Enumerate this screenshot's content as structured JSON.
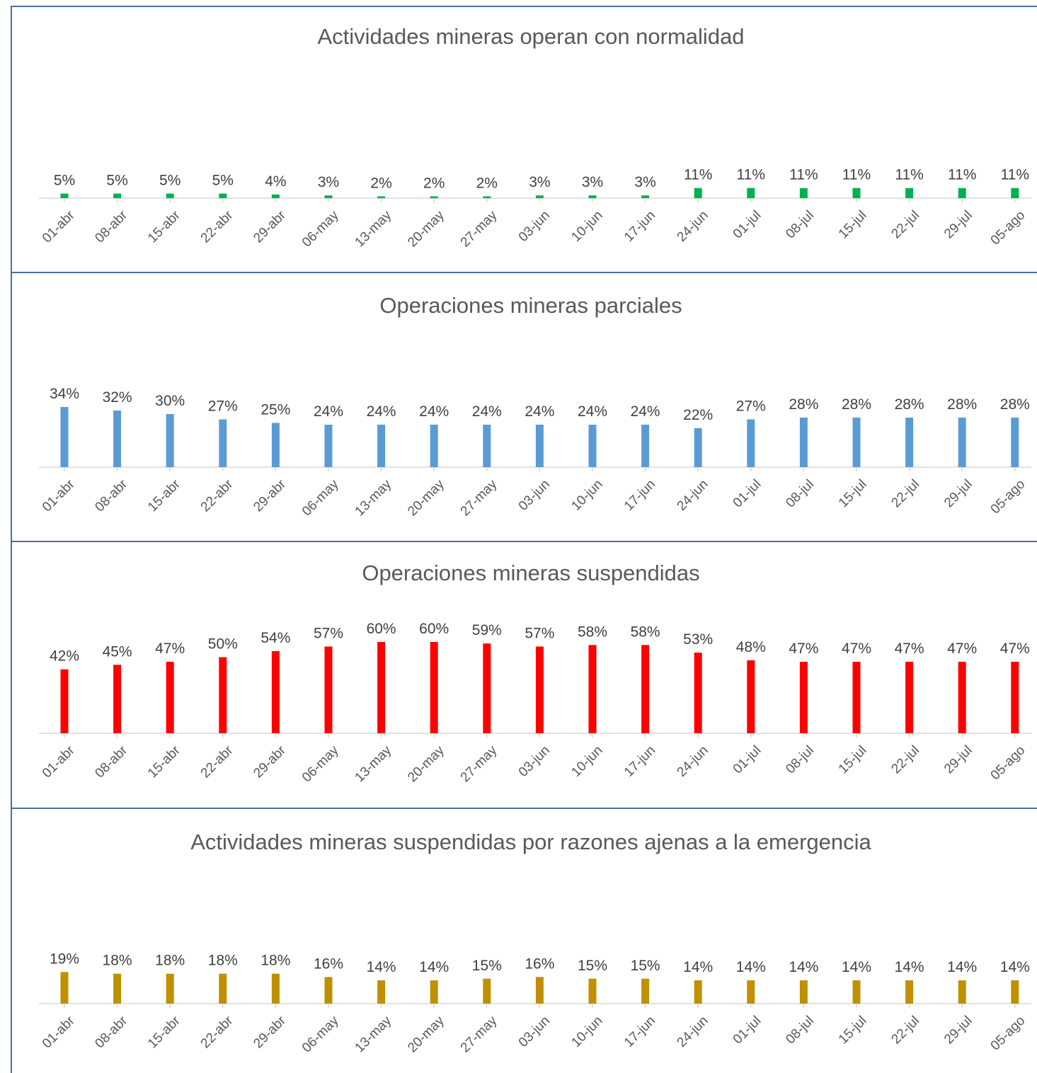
{
  "chart_data": [
    {
      "type": "bar",
      "title": "Actividades mineras operan con normalidad",
      "color": "#00b050",
      "categories": [
        "01-abr",
        "08-abr",
        "15-abr",
        "22-abr",
        "29-abr",
        "06-may",
        "13-may",
        "20-may",
        "27-may",
        "03-jun",
        "10-jun",
        "17-jun",
        "24-jun",
        "01-jul",
        "08-jul",
        "15-jul",
        "22-jul",
        "29-jul",
        "05-ago"
      ],
      "values": [
        5,
        5,
        5,
        5,
        4,
        3,
        2,
        2,
        2,
        3,
        3,
        3,
        11,
        11,
        11,
        11,
        11,
        11,
        11
      ],
      "value_labels": [
        "5%",
        "5%",
        "5%",
        "5%",
        "4%",
        "3%",
        "2%",
        "2%",
        "2%",
        "3%",
        "3%",
        "3%",
        "11%",
        "11%",
        "11%",
        "11%",
        "11%",
        "11%",
        "11%"
      ],
      "ylim": [
        0,
        100
      ],
      "grid": false
    },
    {
      "type": "bar",
      "title": "Operaciones mineras parciales",
      "color": "#5b9bd5",
      "categories": [
        "01-abr",
        "08-abr",
        "15-abr",
        "22-abr",
        "29-abr",
        "06-may",
        "13-may",
        "20-may",
        "27-may",
        "03-jun",
        "10-jun",
        "17-jun",
        "24-jun",
        "01-jul",
        "08-jul",
        "15-jul",
        "22-jul",
        "29-jul",
        "05-ago"
      ],
      "values": [
        34,
        32,
        30,
        27,
        25,
        24,
        24,
        24,
        24,
        24,
        24,
        24,
        22,
        27,
        28,
        28,
        28,
        28,
        28
      ],
      "value_labels": [
        "34%",
        "32%",
        "30%",
        "27%",
        "25%",
        "24%",
        "24%",
        "24%",
        "24%",
        "24%",
        "24%",
        "24%",
        "22%",
        "27%",
        "28%",
        "28%",
        "28%",
        "28%",
        "28%"
      ],
      "ylim": [
        0,
        100
      ],
      "grid": false
    },
    {
      "type": "bar",
      "title": "Operaciones mineras suspendidas",
      "color": "#ff0000",
      "categories": [
        "01-abr",
        "08-abr",
        "15-abr",
        "22-abr",
        "29-abr",
        "06-may",
        "13-may",
        "20-may",
        "27-may",
        "03-jun",
        "10-jun",
        "17-jun",
        "24-jun",
        "01-jul",
        "08-jul",
        "15-jul",
        "22-jul",
        "29-jul",
        "05-ago"
      ],
      "values": [
        42,
        45,
        47,
        50,
        54,
        57,
        60,
        60,
        59,
        57,
        58,
        58,
        53,
        48,
        47,
        47,
        47,
        47,
        47
      ],
      "value_labels": [
        "42%",
        "45%",
        "47%",
        "50%",
        "54%",
        "57%",
        "60%",
        "60%",
        "59%",
        "57%",
        "58%",
        "58%",
        "53%",
        "48%",
        "47%",
        "47%",
        "47%",
        "47%",
        "47%"
      ],
      "ylim": [
        0,
        100
      ],
      "grid": false
    },
    {
      "type": "bar",
      "title": "Actividades mineras suspendidas por razones ajenas a la emergencia",
      "color": "#bf9000",
      "categories": [
        "01-abr",
        "08-abr",
        "15-abr",
        "22-abr",
        "29-abr",
        "06-may",
        "13-may",
        "20-may",
        "27-may",
        "03-jun",
        "10-jun",
        "17-jun",
        "24-jun",
        "01-jul",
        "08-jul",
        "15-jul",
        "22-jul",
        "29-jul",
        "05-ago"
      ],
      "values": [
        19,
        18,
        18,
        18,
        18,
        16,
        14,
        14,
        15,
        16,
        15,
        15,
        14,
        14,
        14,
        14,
        14,
        14,
        14
      ],
      "value_labels": [
        "19%",
        "18%",
        "18%",
        "18%",
        "18%",
        "16%",
        "14%",
        "14%",
        "15%",
        "16%",
        "15%",
        "15%",
        "14%",
        "14%",
        "14%",
        "14%",
        "14%",
        "14%",
        "14%"
      ],
      "ylim": [
        0,
        100
      ],
      "grid": false
    }
  ]
}
